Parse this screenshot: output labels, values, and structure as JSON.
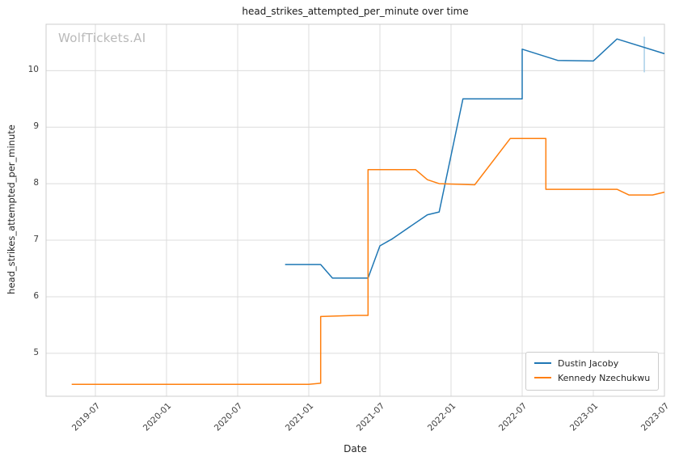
{
  "chart_data": {
    "type": "line",
    "title": "head_strikes_attempted_per_minute over time",
    "xlabel": "Date",
    "ylabel": "head_strikes_attempted_per_minute",
    "watermark": "WolfTickets.AI",
    "x_tick_labels": [
      "2019-07",
      "2020-01",
      "2020-07",
      "2021-01",
      "2021-07",
      "2022-01",
      "2022-07",
      "2023-01",
      "2023-07"
    ],
    "y_ticks": [
      5,
      6,
      7,
      8,
      9,
      10
    ],
    "xlim_months_since_2019_01": [
      1.84,
      54
    ],
    "ylim": [
      4.24,
      10.82
    ],
    "grid": true,
    "legend_position": "lower right",
    "colors": {
      "grid": "#dcdcdc",
      "plot_border": "#cccccc",
      "event_marker": "#a8cfe8"
    },
    "series": [
      {
        "name": "Dustin Jacoby",
        "color": "#1f77b4",
        "points": [
          [
            "2020-11",
            6.57
          ],
          [
            "2021-02",
            6.57
          ],
          [
            "2021-03",
            6.33
          ],
          [
            "2021-06",
            6.33
          ],
          [
            "2021-07",
            6.9
          ],
          [
            "2021-08",
            7.02
          ],
          [
            "2021-11",
            7.45
          ],
          [
            "2021-12",
            7.5
          ],
          [
            "2022-02",
            9.5
          ],
          [
            "2022-07",
            9.5
          ],
          [
            "2022-07",
            10.38
          ],
          [
            "2022-10",
            10.18
          ],
          [
            "2023-01",
            10.17
          ],
          [
            "2023-03",
            10.56
          ],
          [
            "2023-07",
            10.3
          ]
        ]
      },
      {
        "name": "Kennedy Nzechukwu",
        "color": "#ff7f0e",
        "points": [
          [
            "2019-05",
            4.45
          ],
          [
            "2021-01",
            4.45
          ],
          [
            "2021-02",
            4.47
          ],
          [
            "2021-02",
            5.65
          ],
          [
            "2021-05",
            5.67
          ],
          [
            "2021-06",
            5.67
          ],
          [
            "2021-06",
            8.25
          ],
          [
            "2021-10",
            8.25
          ],
          [
            "2021-11",
            8.07
          ],
          [
            "2021-12",
            8.0
          ],
          [
            "2022-03",
            7.98
          ],
          [
            "2022-06",
            8.8
          ],
          [
            "2022-09",
            8.8
          ],
          [
            "2022-09",
            7.9
          ],
          [
            "2023-03",
            7.9
          ],
          [
            "2023-04",
            7.8
          ],
          [
            "2023-06",
            7.8
          ],
          [
            "2023-07",
            7.85
          ]
        ]
      }
    ],
    "event_marker": {
      "month": "2023-05",
      "y_from": 9.97,
      "y_to": 10.6
    }
  }
}
